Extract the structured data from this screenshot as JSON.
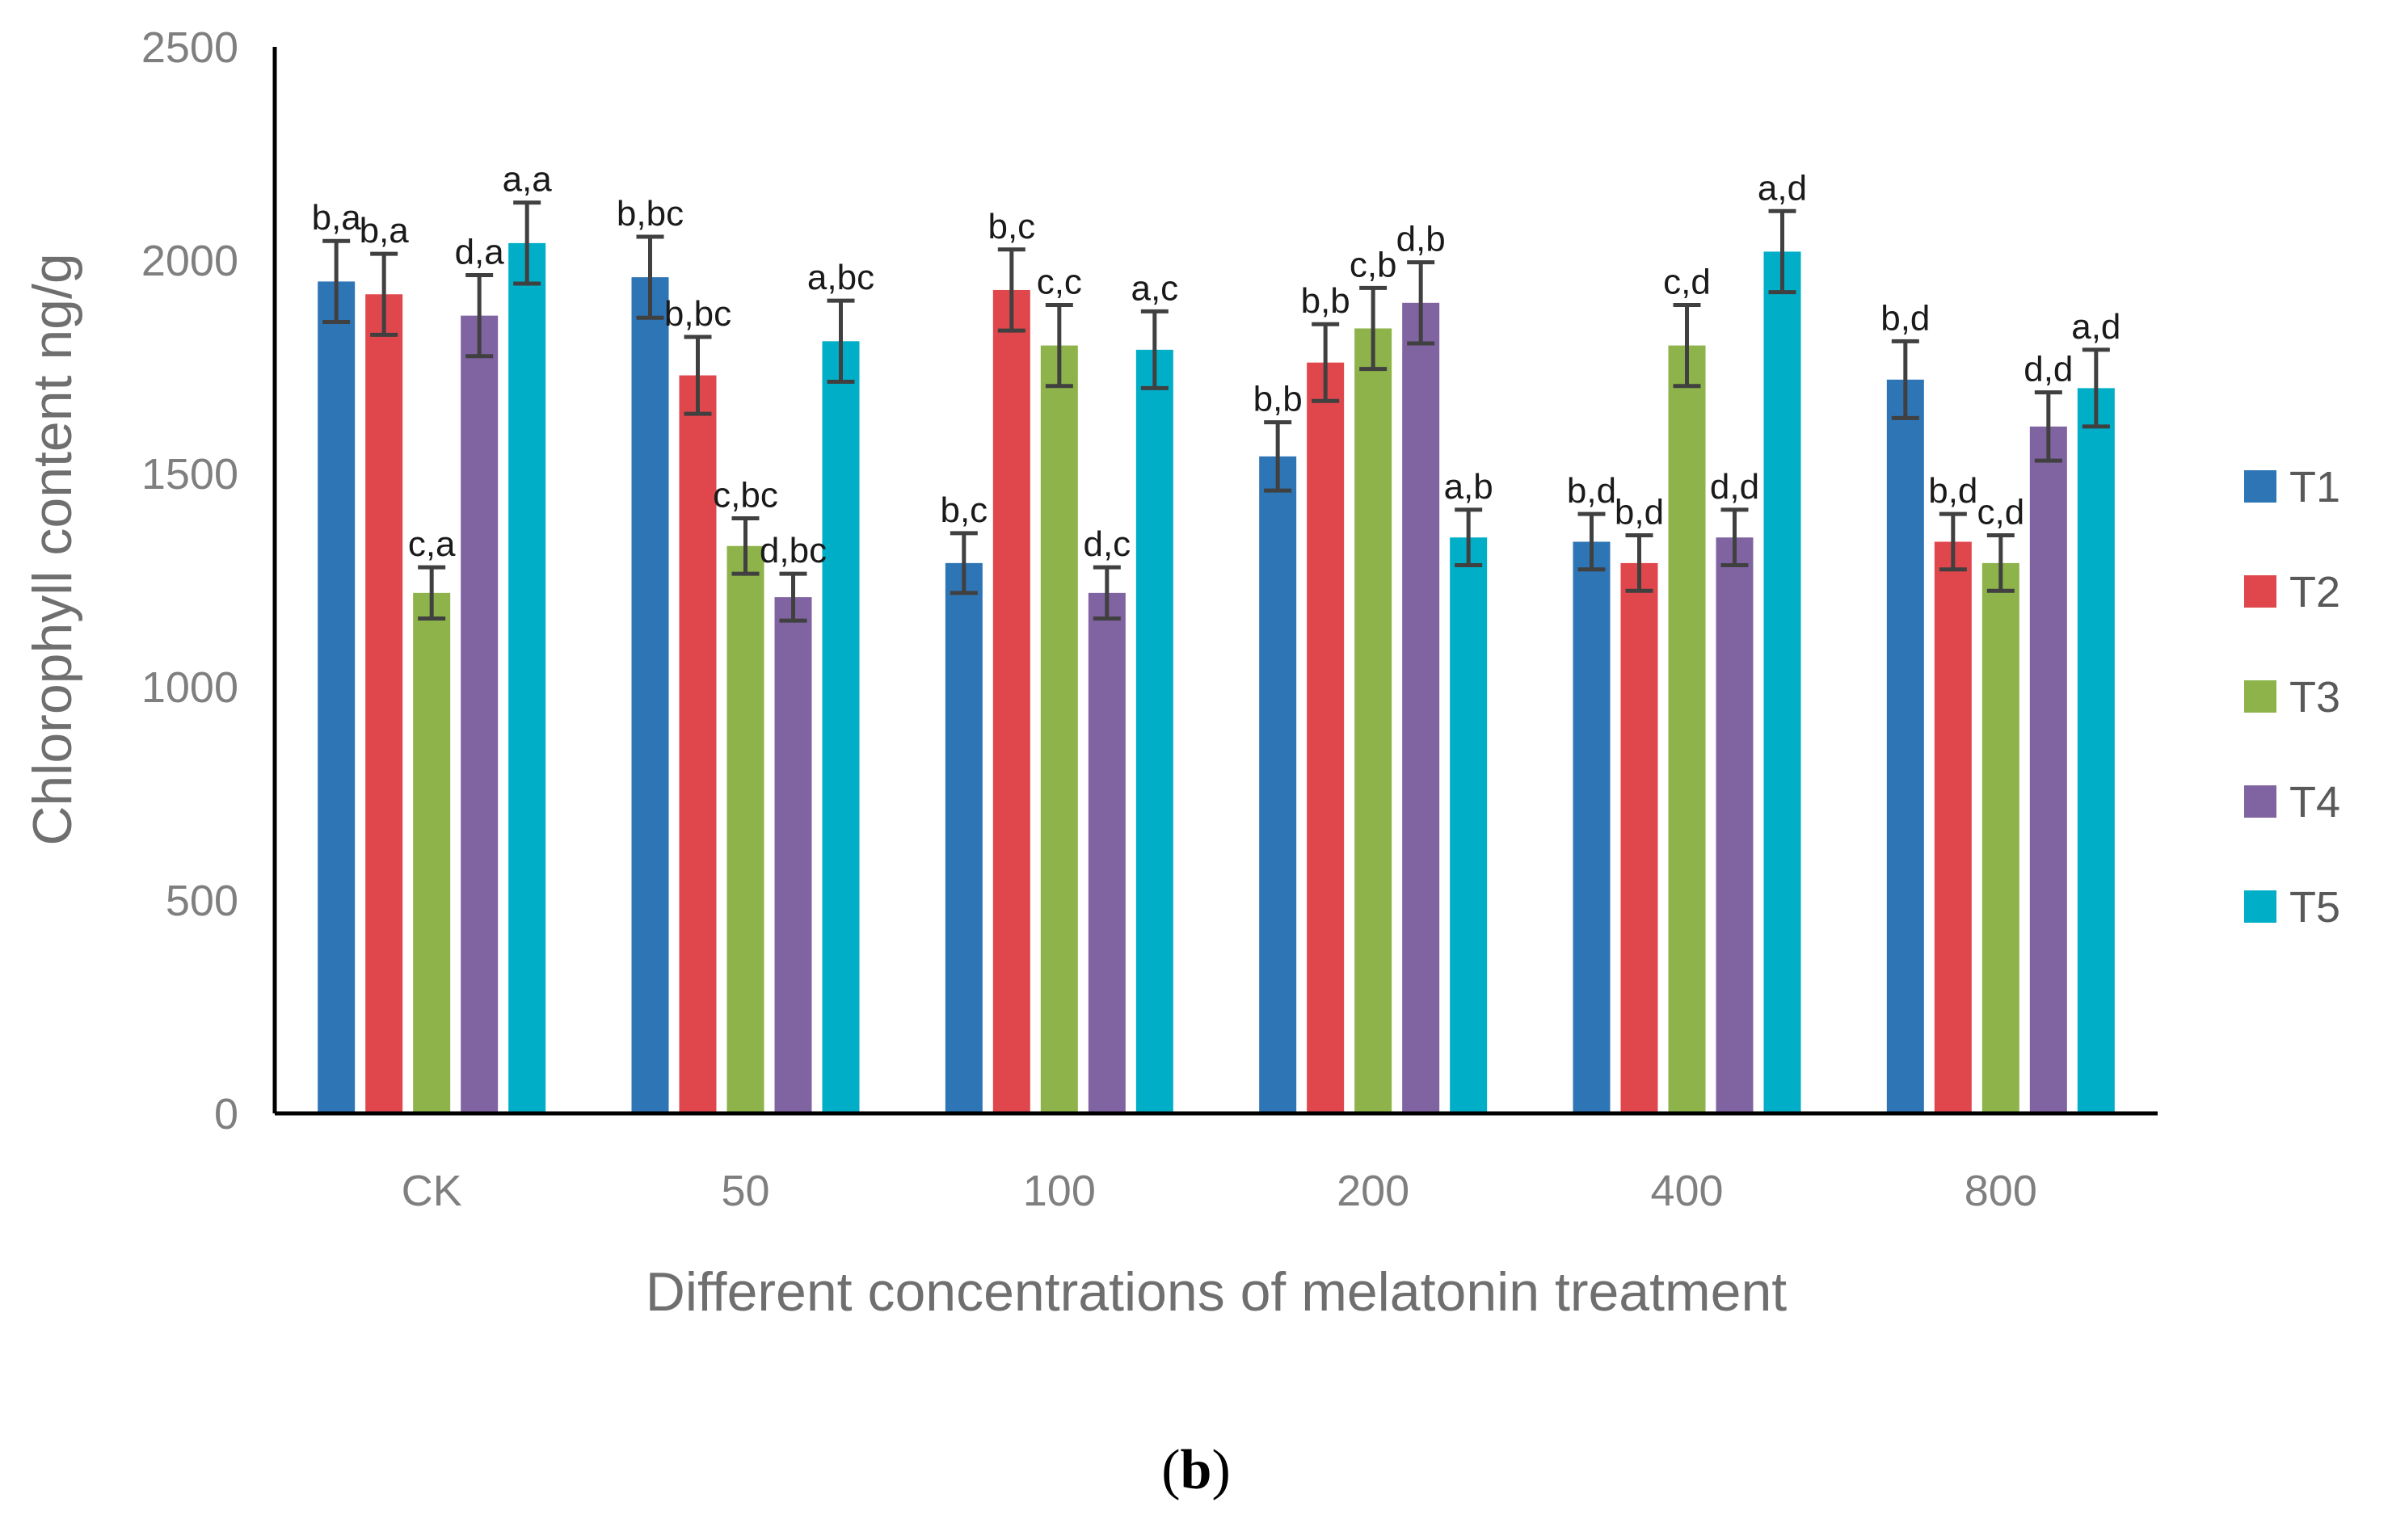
{
  "chart_data": {
    "type": "bar",
    "title": "",
    "xlabel": "Different concentrations of melatonin treatment",
    "ylabel": "Chlorophyll content  ng/g",
    "ylim": [
      0,
      2500
    ],
    "yticks": [
      0,
      500,
      1000,
      1500,
      2000,
      2500
    ],
    "categories": [
      "CK",
      "50",
      "100",
      "200",
      "400",
      "800"
    ],
    "legend_position": "right",
    "grid": false,
    "series": [
      {
        "name": "T1",
        "color": "#2e75b6",
        "values": [
          1950,
          1960,
          1290,
          1540,
          1340,
          1720
        ],
        "errors": [
          95,
          95,
          70,
          80,
          65,
          90
        ],
        "labels": [
          "b,a",
          "b,bc",
          "b,c",
          "b,b",
          "b,d",
          "b,d"
        ]
      },
      {
        "name": "T2",
        "color": "#e0474c",
        "values": [
          1920,
          1730,
          1930,
          1760,
          1290,
          1340
        ],
        "errors": [
          95,
          90,
          95,
          90,
          65,
          65
        ],
        "labels": [
          "b,a",
          "b,bc",
          "b,c",
          "b,b",
          "b,d",
          "b,d"
        ]
      },
      {
        "name": "T3",
        "color": "#8db34a",
        "values": [
          1220,
          1330,
          1800,
          1840,
          1800,
          1290
        ],
        "errors": [
          60,
          65,
          95,
          95,
          95,
          65
        ],
        "labels": [
          "c,a",
          "c,bc",
          "c,c",
          "c,b",
          "c,d",
          "c,d"
        ]
      },
      {
        "name": "T4",
        "color": "#8064a2",
        "values": [
          1870,
          1210,
          1220,
          1900,
          1350,
          1610
        ],
        "errors": [
          95,
          55,
          60,
          95,
          65,
          80
        ],
        "labels": [
          "d,a",
          "d,bc",
          "d,c",
          "d,b",
          "d,d",
          "d,d"
        ]
      },
      {
        "name": "T5",
        "color": "#00aec7",
        "values": [
          2040,
          1810,
          1790,
          1350,
          2020,
          1700
        ],
        "errors": [
          95,
          95,
          90,
          65,
          95,
          90
        ],
        "labels": [
          "a,a",
          "a,bc",
          "a,c",
          "a,b",
          "a,d",
          "a,d"
        ]
      }
    ]
  },
  "caption": {
    "open": "(",
    "letter": "b",
    "close": ")"
  }
}
